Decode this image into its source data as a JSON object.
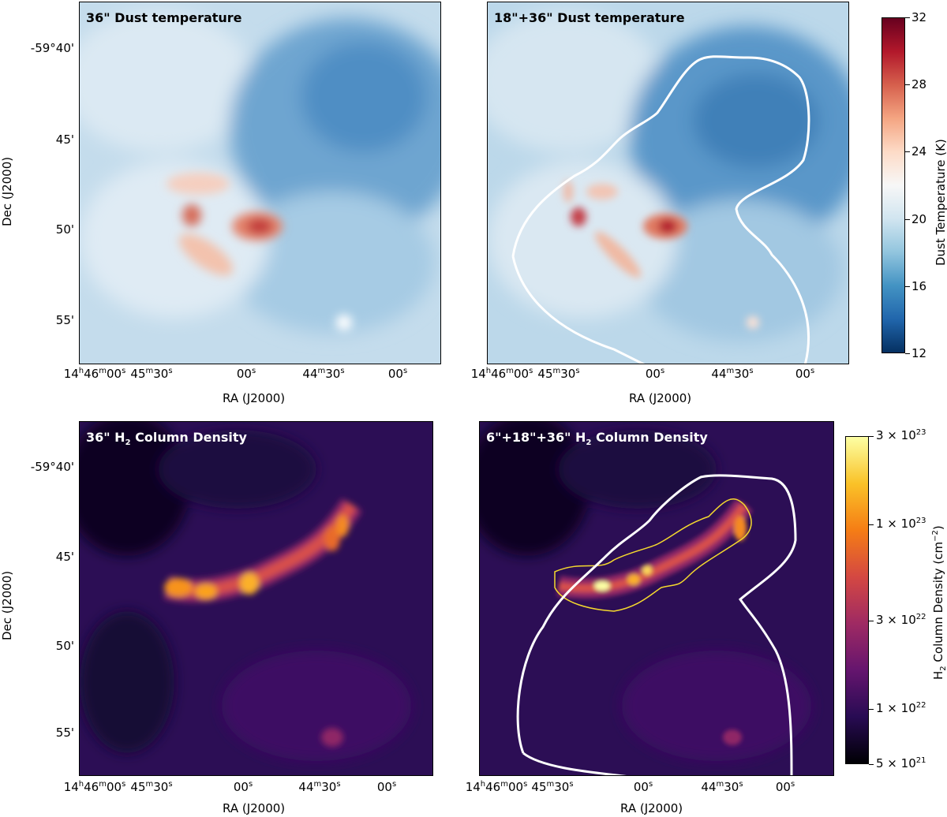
{
  "panels": {
    "tl": {
      "title": "36\" Dust temperature"
    },
    "tr": {
      "title": "18\"+36\" Dust temperature"
    },
    "bl": {
      "title_pre": "36\" H",
      "title_sub": "2",
      "title_post": " Column Density"
    },
    "br": {
      "title_pre": "6\"+18\"+36\" H",
      "title_sub": "2",
      "title_post": " Column Density"
    }
  },
  "axes": {
    "xlabel": "RA (J2000)",
    "ylabel": "Dec (J2000)",
    "xticks": [
      {
        "h": "14",
        "hu": "h",
        "m": "46",
        "mu": "m",
        "s": "00",
        "su": "s"
      },
      {
        "m": "45",
        "mu": "m",
        "s": "30",
        "su": "s"
      },
      {
        "s": "00",
        "su": "s"
      },
      {
        "m": "44",
        "mu": "m",
        "s": "30",
        "su": "s"
      },
      {
        "s": "00",
        "su": "s"
      }
    ],
    "yticks": [
      "-59°40'",
      "45'",
      "50'",
      "55'"
    ]
  },
  "colorbars": {
    "temperature": {
      "label": "Dust Temperature (K)",
      "ticks": [
        "32",
        "28",
        "24",
        "20",
        "16",
        "12"
      ],
      "range": [
        12,
        32
      ],
      "colors": [
        "#67001f",
        "#b2182b",
        "#d6604d",
        "#f4a582",
        "#fddbc7",
        "#f7f7f7",
        "#d1e5f0",
        "#92c5de",
        "#4393c3",
        "#2166ac",
        "#053061"
      ]
    },
    "density": {
      "label_pre": "H",
      "label_sub": "2",
      "label_mid": " Column Density (cm",
      "label_sup": "−2",
      "label_post": ")",
      "ticks": [
        {
          "m": "3 × 10",
          "e": "23"
        },
        {
          "m": "1 × 10",
          "e": "23"
        },
        {
          "m": "3 × 10",
          "e": "22"
        },
        {
          "m": "1 × 10",
          "e": "22"
        },
        {
          "m": "5 × 10",
          "e": "21"
        }
      ],
      "colors": [
        "#fcffa4",
        "#fac228",
        "#f57d15",
        "#d44842",
        "#9f2a63",
        "#65156e",
        "#280b53",
        "#000004"
      ]
    }
  }
}
